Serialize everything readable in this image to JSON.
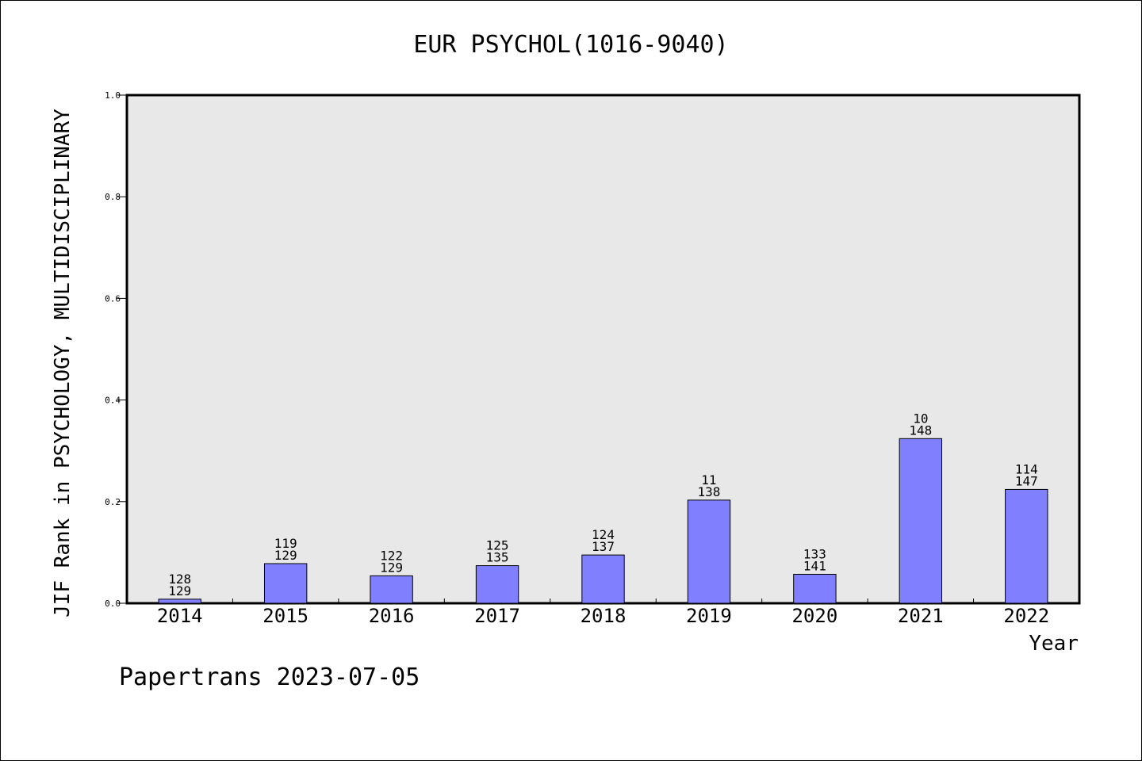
{
  "chart_data": {
    "type": "bar",
    "title": "EUR PSYCHOL(1016-9040)",
    "xlabel": "Year",
    "ylabel": "JIF Rank in PSYCHOLOGY, MULTIDISCIPLINARY",
    "ylim": [
      0,
      1.0
    ],
    "yticks": [
      "0.0",
      "0.2",
      "0.4",
      "0.6",
      "0.8",
      "1.0"
    ],
    "categories": [
      "2014",
      "2015",
      "2016",
      "2017",
      "2018",
      "2019",
      "2020",
      "2021",
      "2022"
    ],
    "values": [
      0.008,
      0.078,
      0.054,
      0.074,
      0.095,
      0.203,
      0.057,
      0.324,
      0.224
    ],
    "rank": [
      "128",
      "119",
      "122",
      "125",
      "124",
      "11",
      "133",
      "10",
      "114"
    ],
    "total": [
      "129",
      "129",
      "129",
      "135",
      "137",
      "138",
      "141",
      "148",
      "147"
    ],
    "grid": false,
    "colors": {
      "bar": "#8080ff",
      "bar_edge": "#000000",
      "plot_bg": "#e8e8e8"
    }
  },
  "footer": "Papertrans 2023-07-05"
}
